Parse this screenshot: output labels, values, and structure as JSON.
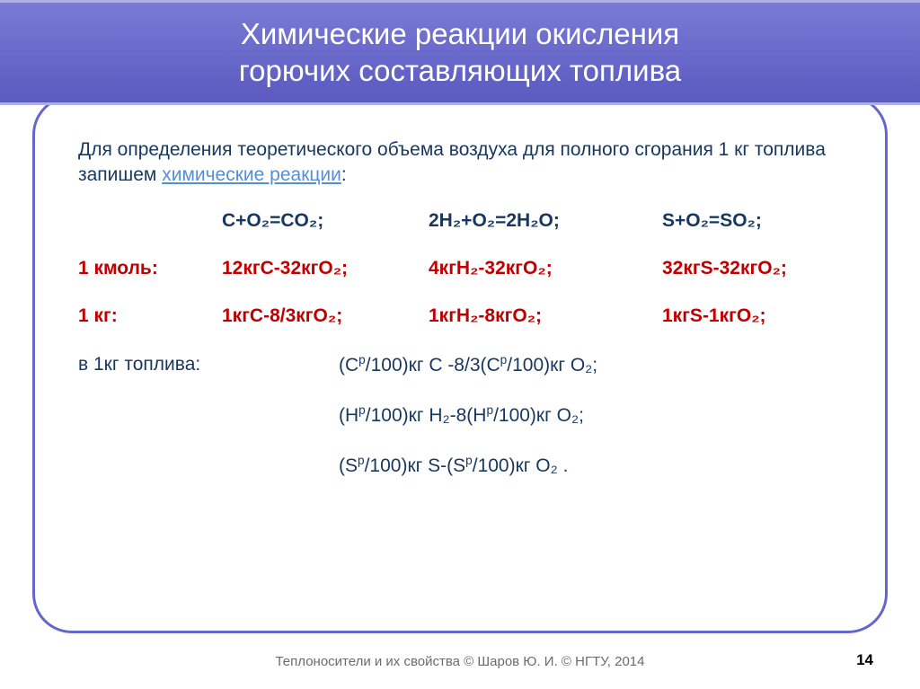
{
  "title_line1": "Химические реакции окисления",
  "title_line2": "горючих составляющих топлива",
  "intro_pre": "  Для определения теоретического объема воздуха для полного сгорания 1 кг топлива запишем ",
  "intro_hl": "химические реакции",
  "intro_post": ":",
  "rows": {
    "eq": {
      "label": "",
      "c1": "C+O₂=CO₂;",
      "c2": "2H₂+O₂=2H₂O;",
      "c3": "S+O₂=SO₂;"
    },
    "kmol": {
      "label": "1 кмоль:",
      "c1": "12кгC-32кгO₂;",
      "c2": "4кгH₂-32кгO₂;",
      "c3": "32кгS-32кгO₂;"
    },
    "kg": {
      "label": "1 кг:",
      "c1": "1кгC-8/3кгO₂;",
      "c2": "1кгH₂-8кгO₂;",
      "c3": "1кгS-1кгO₂;"
    }
  },
  "fuel": {
    "label": "в 1кг топлива:",
    "l1a": "(C",
    "l1b": "/100)кг C -8/3(C",
    "l1c": "/100)кг O₂;",
    "l2a": "(H",
    "l2b": "/100)кг H₂-8(H",
    "l2c": "/100)кг O₂;",
    "l3a": "(S",
    "l3b": "/100)кг S-(S",
    "l3c": "/100)кг O₂ ."
  },
  "sup_p": "р",
  "footer": "Теплоносители и их свойства © Шаров Ю. И. © НГТУ, 2014",
  "page": "14",
  "colors": {
    "header_bg": "#6666cc",
    "header_text": "#ffffff",
    "border": "#6666cc",
    "blue": "#17375e",
    "red": "#c00000",
    "link": "#558ed5",
    "footer": "#6b6b6b"
  },
  "fontsize": {
    "title": 33,
    "body": 21,
    "footer": 15
  }
}
